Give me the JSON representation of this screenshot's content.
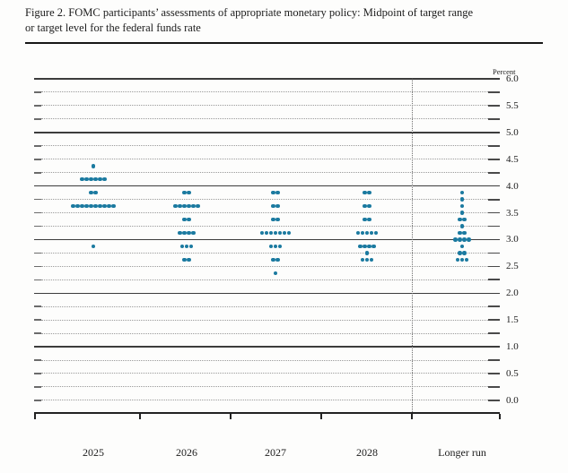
{
  "figure": {
    "title_line1": "Figure 2. FOMC participants’ assessments of appropriate monetary policy: Midpoint of target range",
    "title_line2": "or target level for the federal funds rate"
  },
  "chart_data": {
    "type": "scatter",
    "title": "FOMC participants’ assessments of appropriate monetary policy: Midpoint of target range or target level for the federal funds rate",
    "unit_label": "Percent",
    "x_categories": [
      "2025",
      "2026",
      "2027",
      "2028",
      "Longer run"
    ],
    "ylim": [
      0.0,
      6.0
    ],
    "grid_step": 0.25,
    "solid_levels": [
      6.0,
      5.0,
      4.0,
      3.0,
      2.0,
      1.0
    ],
    "y_tick_labels": [
      "6.0",
      "5.5",
      "5.0",
      "4.5",
      "4.0",
      "3.5",
      "3.0",
      "2.5",
      "2.0",
      "1.5",
      "1.0",
      "0.5",
      "0.0"
    ],
    "dot_color": "#1b7aa0",
    "separator_before_category": "Longer run",
    "series": [
      {
        "category": "2025",
        "dots": [
          {
            "rate": 4.375,
            "count": 1
          },
          {
            "rate": 4.125,
            "count": 6
          },
          {
            "rate": 3.875,
            "count": 2
          },
          {
            "rate": 3.625,
            "count": 10
          },
          {
            "rate": 2.875,
            "count": 1
          }
        ]
      },
      {
        "category": "2026",
        "dots": [
          {
            "rate": 3.875,
            "count": 2
          },
          {
            "rate": 3.625,
            "count": 6
          },
          {
            "rate": 3.375,
            "count": 2
          },
          {
            "rate": 3.125,
            "count": 4
          },
          {
            "rate": 2.875,
            "count": 3
          },
          {
            "rate": 2.625,
            "count": 2
          }
        ]
      },
      {
        "category": "2027",
        "dots": [
          {
            "rate": 3.875,
            "count": 2
          },
          {
            "rate": 3.625,
            "count": 2
          },
          {
            "rate": 3.375,
            "count": 2
          },
          {
            "rate": 3.125,
            "count": 7
          },
          {
            "rate": 2.875,
            "count": 3
          },
          {
            "rate": 2.625,
            "count": 2
          },
          {
            "rate": 2.375,
            "count": 1
          }
        ]
      },
      {
        "category": "2028",
        "dots": [
          {
            "rate": 3.875,
            "count": 2
          },
          {
            "rate": 3.625,
            "count": 2
          },
          {
            "rate": 3.375,
            "count": 2
          },
          {
            "rate": 3.125,
            "count": 5
          },
          {
            "rate": 2.875,
            "count": 4
          },
          {
            "rate": 2.75,
            "count": 1
          },
          {
            "rate": 2.625,
            "count": 3
          }
        ]
      },
      {
        "category": "Longer run",
        "dots": [
          {
            "rate": 3.875,
            "count": 1
          },
          {
            "rate": 3.75,
            "count": 1
          },
          {
            "rate": 3.625,
            "count": 1
          },
          {
            "rate": 3.5,
            "count": 1
          },
          {
            "rate": 3.375,
            "count": 2
          },
          {
            "rate": 3.25,
            "count": 1
          },
          {
            "rate": 3.125,
            "count": 2
          },
          {
            "rate": 3.0,
            "count": 4
          },
          {
            "rate": 2.875,
            "count": 1
          },
          {
            "rate": 2.75,
            "count": 2
          },
          {
            "rate": 2.625,
            "count": 3
          }
        ]
      }
    ]
  }
}
